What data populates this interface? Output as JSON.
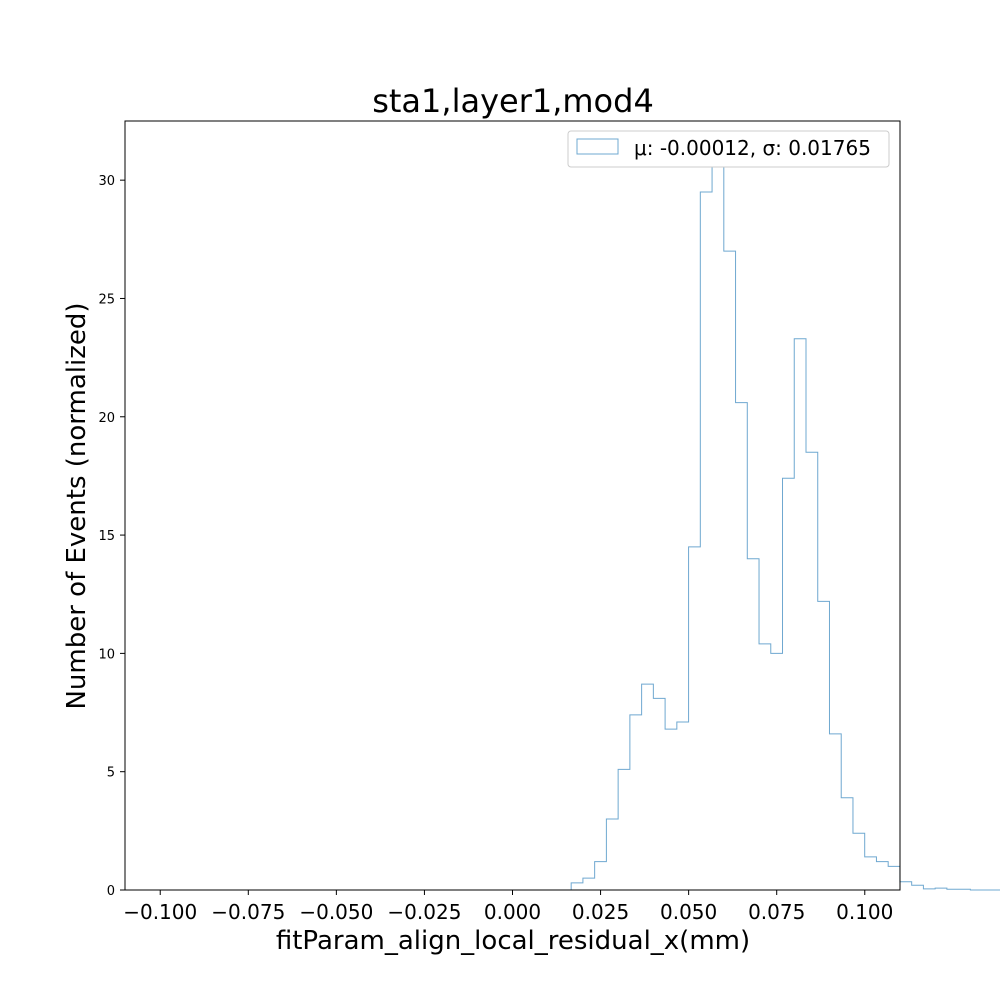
{
  "chart_data": {
    "type": "histogram",
    "title": "sta1,layer1,mod4",
    "xlabel": "fitParam_align_local_residual_x(mm)",
    "ylabel": "Number of Events (normalized)",
    "xlim": [
      -0.11,
      0.11
    ],
    "ylim": [
      0,
      32.5
    ],
    "xticks": [
      -0.1,
      -0.075,
      -0.05,
      -0.025,
      0.0,
      0.025,
      0.05,
      0.075,
      0.1
    ],
    "xtick_labels": [
      "−0.100",
      "−0.075",
      "−0.050",
      "−0.025",
      "0.000",
      "0.025",
      "0.050",
      "0.075",
      "0.100"
    ],
    "yticks": [
      0,
      5,
      10,
      15,
      20,
      25,
      30
    ],
    "ytick_labels": [
      "0",
      "5",
      "10",
      "15",
      "20",
      "25",
      "30"
    ],
    "grid": false,
    "legend_position": "top-right",
    "series": [
      {
        "name": "μ: -0.00012, σ: 0.01765",
        "color": "#6fa8d0",
        "bin_start": -0.1,
        "bin_width": 0.003333,
        "values": [
          0,
          0,
          0,
          0,
          0,
          0,
          0,
          0,
          0,
          0,
          0,
          0,
          0,
          0,
          0,
          0,
          0,
          0,
          0,
          0,
          0,
          0,
          0,
          0,
          0,
          0,
          0,
          0,
          0,
          0,
          0,
          0,
          0,
          0,
          0,
          0.3,
          0.5,
          1.2,
          3.0,
          5.1,
          7.4,
          8.7,
          8.1,
          6.8,
          7.1,
          14.5,
          29.5,
          31.0,
          27.0,
          20.6,
          14.0,
          10.4,
          10.0,
          17.4,
          23.3,
          18.5,
          12.2,
          6.6,
          3.9,
          2.4,
          1.4,
          1.2,
          1.0,
          0.35,
          0.2,
          0.05,
          0.08,
          0.03,
          0.03,
          0,
          0,
          0,
          0,
          0,
          0,
          0,
          0,
          0,
          0,
          0,
          0,
          0,
          0,
          0,
          0,
          0,
          0,
          0,
          0,
          0,
          0,
          0,
          0,
          0,
          0,
          0,
          0,
          0,
          0,
          0
        ]
      }
    ]
  }
}
